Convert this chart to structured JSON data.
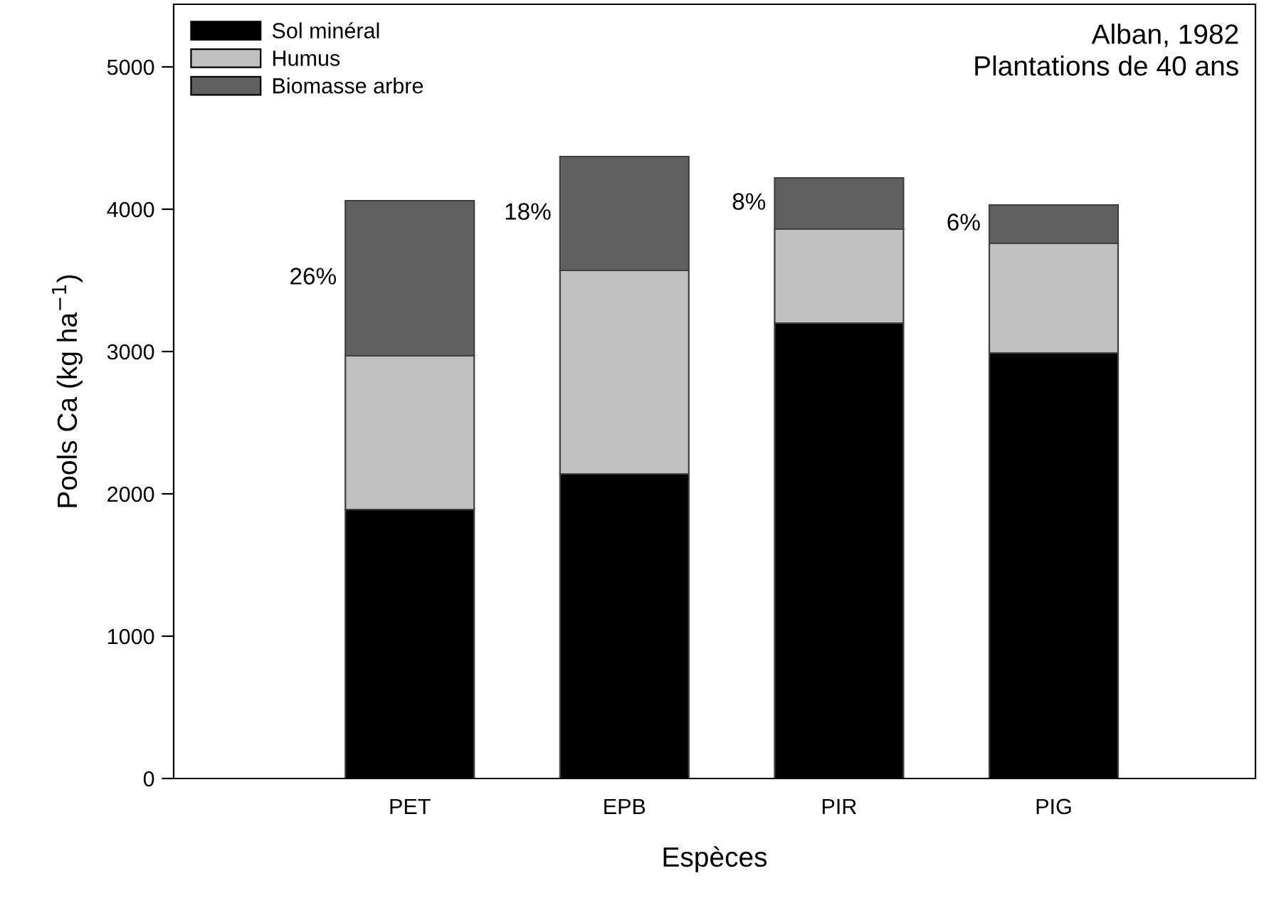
{
  "chart_data": {
    "type": "bar",
    "stacked": true,
    "xlabel": "Espèces",
    "ylabel": "Pools Ca (kg ha$^{−1}$)",
    "categories": [
      "PET",
      "EPB",
      "PIR",
      "PIG"
    ],
    "series": [
      {
        "name": "Sol minéral",
        "color": "#000000",
        "values": [
          1890,
          2140,
          3200,
          2990
        ]
      },
      {
        "name": "Humus",
        "color": "#c0c0c0",
        "values": [
          1080,
          1430,
          660,
          770
        ]
      },
      {
        "name": "Biomasse arbre",
        "color": "#606060",
        "values": [
          1090,
          800,
          360,
          270
        ]
      }
    ],
    "ylim": [
      0,
      5440
    ],
    "yticks": [
      0,
      1000,
      2000,
      3000,
      4000,
      5000
    ],
    "grid": false,
    "legend": "top left",
    "annotations": [
      "26%",
      "18%",
      "8%",
      "6%",
      "Alban, 1982\nPlantations de 40 ans"
    ]
  }
}
